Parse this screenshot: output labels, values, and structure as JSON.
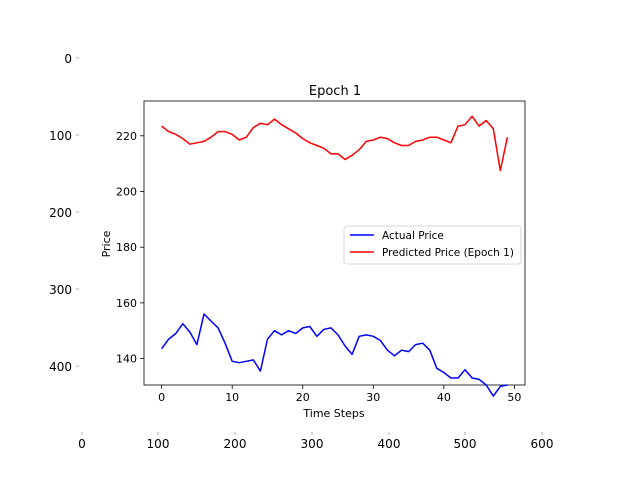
{
  "outer_axes": {
    "y_ticks": [
      "0",
      "100",
      "200",
      "300",
      "400"
    ],
    "x_ticks": [
      "0",
      "100",
      "200",
      "300",
      "400",
      "500",
      "600"
    ]
  },
  "chart_data": {
    "type": "line",
    "title": "Epoch 1",
    "xlabel": "Time Steps",
    "ylabel": "Price",
    "xlim": [
      -2.5,
      51.5
    ],
    "ylim": [
      130.5,
      232.5
    ],
    "xticks": [
      0,
      10,
      20,
      30,
      40,
      50
    ],
    "yticks": [
      140,
      160,
      180,
      200,
      220
    ],
    "grid": false,
    "legend_position": "center-right",
    "series": [
      {
        "name": "Actual Price",
        "color": "#0000ff",
        "x": [
          0,
          1,
          2,
          3,
          4,
          5,
          6,
          7,
          8,
          9,
          10,
          11,
          12,
          13,
          14,
          15,
          16,
          17,
          18,
          19,
          20,
          21,
          22,
          23,
          24,
          25,
          26,
          27,
          28,
          29,
          30,
          31,
          32,
          33,
          34,
          35,
          36,
          37,
          38,
          39,
          40,
          41,
          42,
          43,
          44,
          45,
          46,
          47,
          48,
          49
        ],
        "y": [
          143.5,
          147,
          149,
          152.5,
          149.5,
          145,
          156,
          153.5,
          151,
          145.5,
          139,
          138.5,
          139,
          139.5,
          135.5,
          147,
          150,
          148.5,
          150,
          149,
          151,
          151.5,
          148,
          150.5,
          151,
          148.5,
          144.5,
          141.5,
          148,
          148.5,
          148,
          146.5,
          143,
          141,
          143,
          142.5,
          145,
          145.5,
          143,
          136.5,
          135,
          133,
          133,
          136,
          133,
          132.5,
          130.5,
          126.5,
          130,
          130.5
        ]
      },
      {
        "name": "Predicted Price (Epoch 1)",
        "color": "#ff0000",
        "x": [
          0,
          1,
          2,
          3,
          4,
          5,
          6,
          7,
          8,
          9,
          10,
          11,
          12,
          13,
          14,
          15,
          16,
          17,
          18,
          19,
          20,
          21,
          22,
          23,
          24,
          25,
          26,
          27,
          28,
          29,
          30,
          31,
          32,
          33,
          34,
          35,
          36,
          37,
          38,
          39,
          40,
          41,
          42,
          43,
          44,
          45,
          46,
          47,
          48,
          49
        ],
        "y": [
          223.5,
          221.5,
          220.5,
          219,
          217,
          217.5,
          218,
          219.5,
          221.5,
          221.5,
          220.5,
          218.5,
          219.5,
          223,
          224.5,
          224,
          226,
          224,
          222.5,
          221,
          219,
          217.5,
          216.5,
          215.5,
          213.5,
          213.5,
          211.5,
          213,
          215,
          218,
          218.5,
          219.5,
          219,
          217.5,
          216.5,
          216.5,
          218,
          218.5,
          219.5,
          219.5,
          218.5,
          217.5,
          223.5,
          224,
          227,
          223.5,
          225.5,
          222.5,
          207.5,
          219.5
        ]
      }
    ]
  }
}
